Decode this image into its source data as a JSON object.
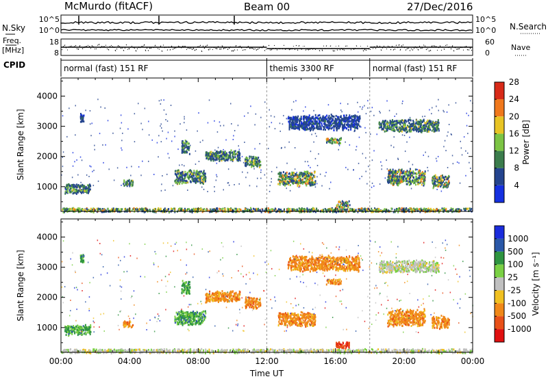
{
  "header": {
    "radar": "McMurdo (fitACF)",
    "beam": "Beam 00",
    "date": "27/Dec/2016"
  },
  "strip": {
    "nsky_label": "N.Sky",
    "nsky_ticks": [
      "10^5",
      "10^0"
    ],
    "nsearch_label": "N.Search",
    "nsearch_ticks": [
      "10^5",
      "10^0"
    ],
    "freq_label_1": "Freq.",
    "freq_label_2": "[MHz]",
    "freq_ticks": [
      "18",
      "8"
    ],
    "nave_label": "Nave",
    "nave_ticks": [
      "60",
      "0"
    ],
    "cpid_label": "CPID",
    "cpid_segments": [
      {
        "name": "normal (fast) 151 RF",
        "start_hour": 0,
        "end_hour": 12
      },
      {
        "name": "themis 3300 RF",
        "start_hour": 12,
        "end_hour": 18
      },
      {
        "name": "normal (fast) 151 RF",
        "start_hour": 18,
        "end_hour": 24
      }
    ]
  },
  "chart_data": [
    {
      "type": "heatmap",
      "title": "",
      "quantity": "Power",
      "ylabel": "Slant Range [km]",
      "xlabel": "",
      "xlim": [
        0,
        24
      ],
      "ylim": [
        180,
        4600
      ],
      "yticks": [
        1000,
        2000,
        3000,
        4000
      ],
      "colorbar": {
        "label": "Power [dB]",
        "range": [
          0,
          32
        ],
        "ticks": [
          "4",
          "8",
          "12",
          "16",
          "20",
          "24",
          "28"
        ],
        "colors": [
          "#1530e0",
          "#24448e",
          "#3b7c4c",
          "#7cc444",
          "#e8c424",
          "#f0781c",
          "#d82a18"
        ]
      },
      "features": [
        {
          "hour_start": 0.0,
          "hour_end": 24.0,
          "range_km": 250,
          "range_width_km": 150,
          "level": "strong"
        },
        {
          "hour_start": 0.2,
          "hour_end": 1.7,
          "range_km": 950,
          "range_width_km": 380,
          "level": "medium"
        },
        {
          "hour_start": 1.1,
          "hour_end": 1.3,
          "range_km": 3300,
          "range_width_km": 300,
          "level": "weak"
        },
        {
          "hour_start": 3.6,
          "hour_end": 4.2,
          "range_km": 1150,
          "range_width_km": 250,
          "level": "medium"
        },
        {
          "hour_start": 6.6,
          "hour_end": 8.4,
          "range_km": 1350,
          "range_width_km": 500,
          "level": "medium"
        },
        {
          "hour_start": 7.0,
          "hour_end": 7.5,
          "range_km": 2350,
          "range_width_km": 500,
          "level": "medium"
        },
        {
          "hour_start": 8.4,
          "hour_end": 10.4,
          "range_km": 2050,
          "range_width_km": 400,
          "level": "medium"
        },
        {
          "hour_start": 10.7,
          "hour_end": 11.6,
          "range_km": 1850,
          "range_width_km": 400,
          "level": "medium"
        },
        {
          "hour_start": 12.6,
          "hour_end": 14.8,
          "range_km": 1300,
          "range_width_km": 500,
          "level": "strong"
        },
        {
          "hour_start": 13.2,
          "hour_end": 17.4,
          "range_km": 3150,
          "range_width_km": 550,
          "level": "weak"
        },
        {
          "hour_start": 15.4,
          "hour_end": 16.3,
          "range_km": 2550,
          "range_width_km": 200,
          "level": "strong"
        },
        {
          "hour_start": 16.0,
          "hour_end": 16.8,
          "range_km": 450,
          "range_width_km": 250,
          "level": "strong"
        },
        {
          "hour_start": 18.5,
          "hour_end": 22.0,
          "range_km": 3050,
          "range_width_km": 450,
          "level": "medium"
        },
        {
          "hour_start": 19.0,
          "hour_end": 21.2,
          "range_km": 1350,
          "range_width_km": 600,
          "level": "strong"
        },
        {
          "hour_start": 21.6,
          "hour_end": 22.6,
          "range_km": 1200,
          "range_width_km": 450,
          "level": "strong"
        }
      ]
    },
    {
      "type": "heatmap",
      "title": "",
      "quantity": "Velocity",
      "ylabel": "Slant Range [km]",
      "xlabel": "Time UT",
      "xlim": [
        0,
        24
      ],
      "ylim": [
        180,
        4600
      ],
      "yticks": [
        1000,
        2000,
        3000,
        4000
      ],
      "xticks": [
        "00:00",
        "04:00",
        "08:00",
        "12:00",
        "16:00",
        "20:00",
        "00:00"
      ],
      "colorbar": {
        "label": "Velocity [m s⁻¹]",
        "ticks": [
          "1000",
          "500",
          "100",
          "25",
          "-25",
          "-100",
          "-500",
          "-1000"
        ],
        "colors": [
          "#1a2cdc",
          "#2a58a8",
          "#2e9440",
          "#7ad044",
          "#c0c0c0",
          "#f0c020",
          "#f08818",
          "#e85018",
          "#e01010"
        ]
      },
      "features": [
        {
          "hour_start": 0.0,
          "hour_end": 24.0,
          "range_km": 250,
          "range_width_km": 150,
          "level": "ground"
        },
        {
          "hour_start": 0.2,
          "hour_end": 1.7,
          "range_km": 950,
          "range_width_km": 380,
          "level": "toward"
        },
        {
          "hour_start": 1.1,
          "hour_end": 1.3,
          "range_km": 3300,
          "range_width_km": 300,
          "level": "toward"
        },
        {
          "hour_start": 3.6,
          "hour_end": 4.2,
          "range_km": 1150,
          "range_width_km": 250,
          "level": "away"
        },
        {
          "hour_start": 6.6,
          "hour_end": 8.4,
          "range_km": 1350,
          "range_width_km": 500,
          "level": "toward"
        },
        {
          "hour_start": 7.0,
          "hour_end": 7.5,
          "range_km": 2350,
          "range_width_km": 500,
          "level": "toward"
        },
        {
          "hour_start": 8.4,
          "hour_end": 10.4,
          "range_km": 2050,
          "range_width_km": 400,
          "level": "away"
        },
        {
          "hour_start": 10.7,
          "hour_end": 11.6,
          "range_km": 1850,
          "range_width_km": 400,
          "level": "away"
        },
        {
          "hour_start": 12.6,
          "hour_end": 14.8,
          "range_km": 1300,
          "range_width_km": 500,
          "level": "away"
        },
        {
          "hour_start": 13.2,
          "hour_end": 17.4,
          "range_km": 3150,
          "range_width_km": 550,
          "level": "away"
        },
        {
          "hour_start": 15.4,
          "hour_end": 16.3,
          "range_km": 2550,
          "range_width_km": 200,
          "level": "away"
        },
        {
          "hour_start": 16.0,
          "hour_end": 16.8,
          "range_km": 450,
          "range_width_km": 250,
          "level": "fast_away"
        },
        {
          "hour_start": 18.5,
          "hour_end": 22.0,
          "range_km": 3050,
          "range_width_km": 450,
          "level": "ground"
        },
        {
          "hour_start": 19.0,
          "hour_end": 21.2,
          "range_km": 1350,
          "range_width_km": 600,
          "level": "away"
        },
        {
          "hour_start": 21.6,
          "hour_end": 22.6,
          "range_km": 1200,
          "range_width_km": 450,
          "level": "away"
        }
      ]
    }
  ]
}
